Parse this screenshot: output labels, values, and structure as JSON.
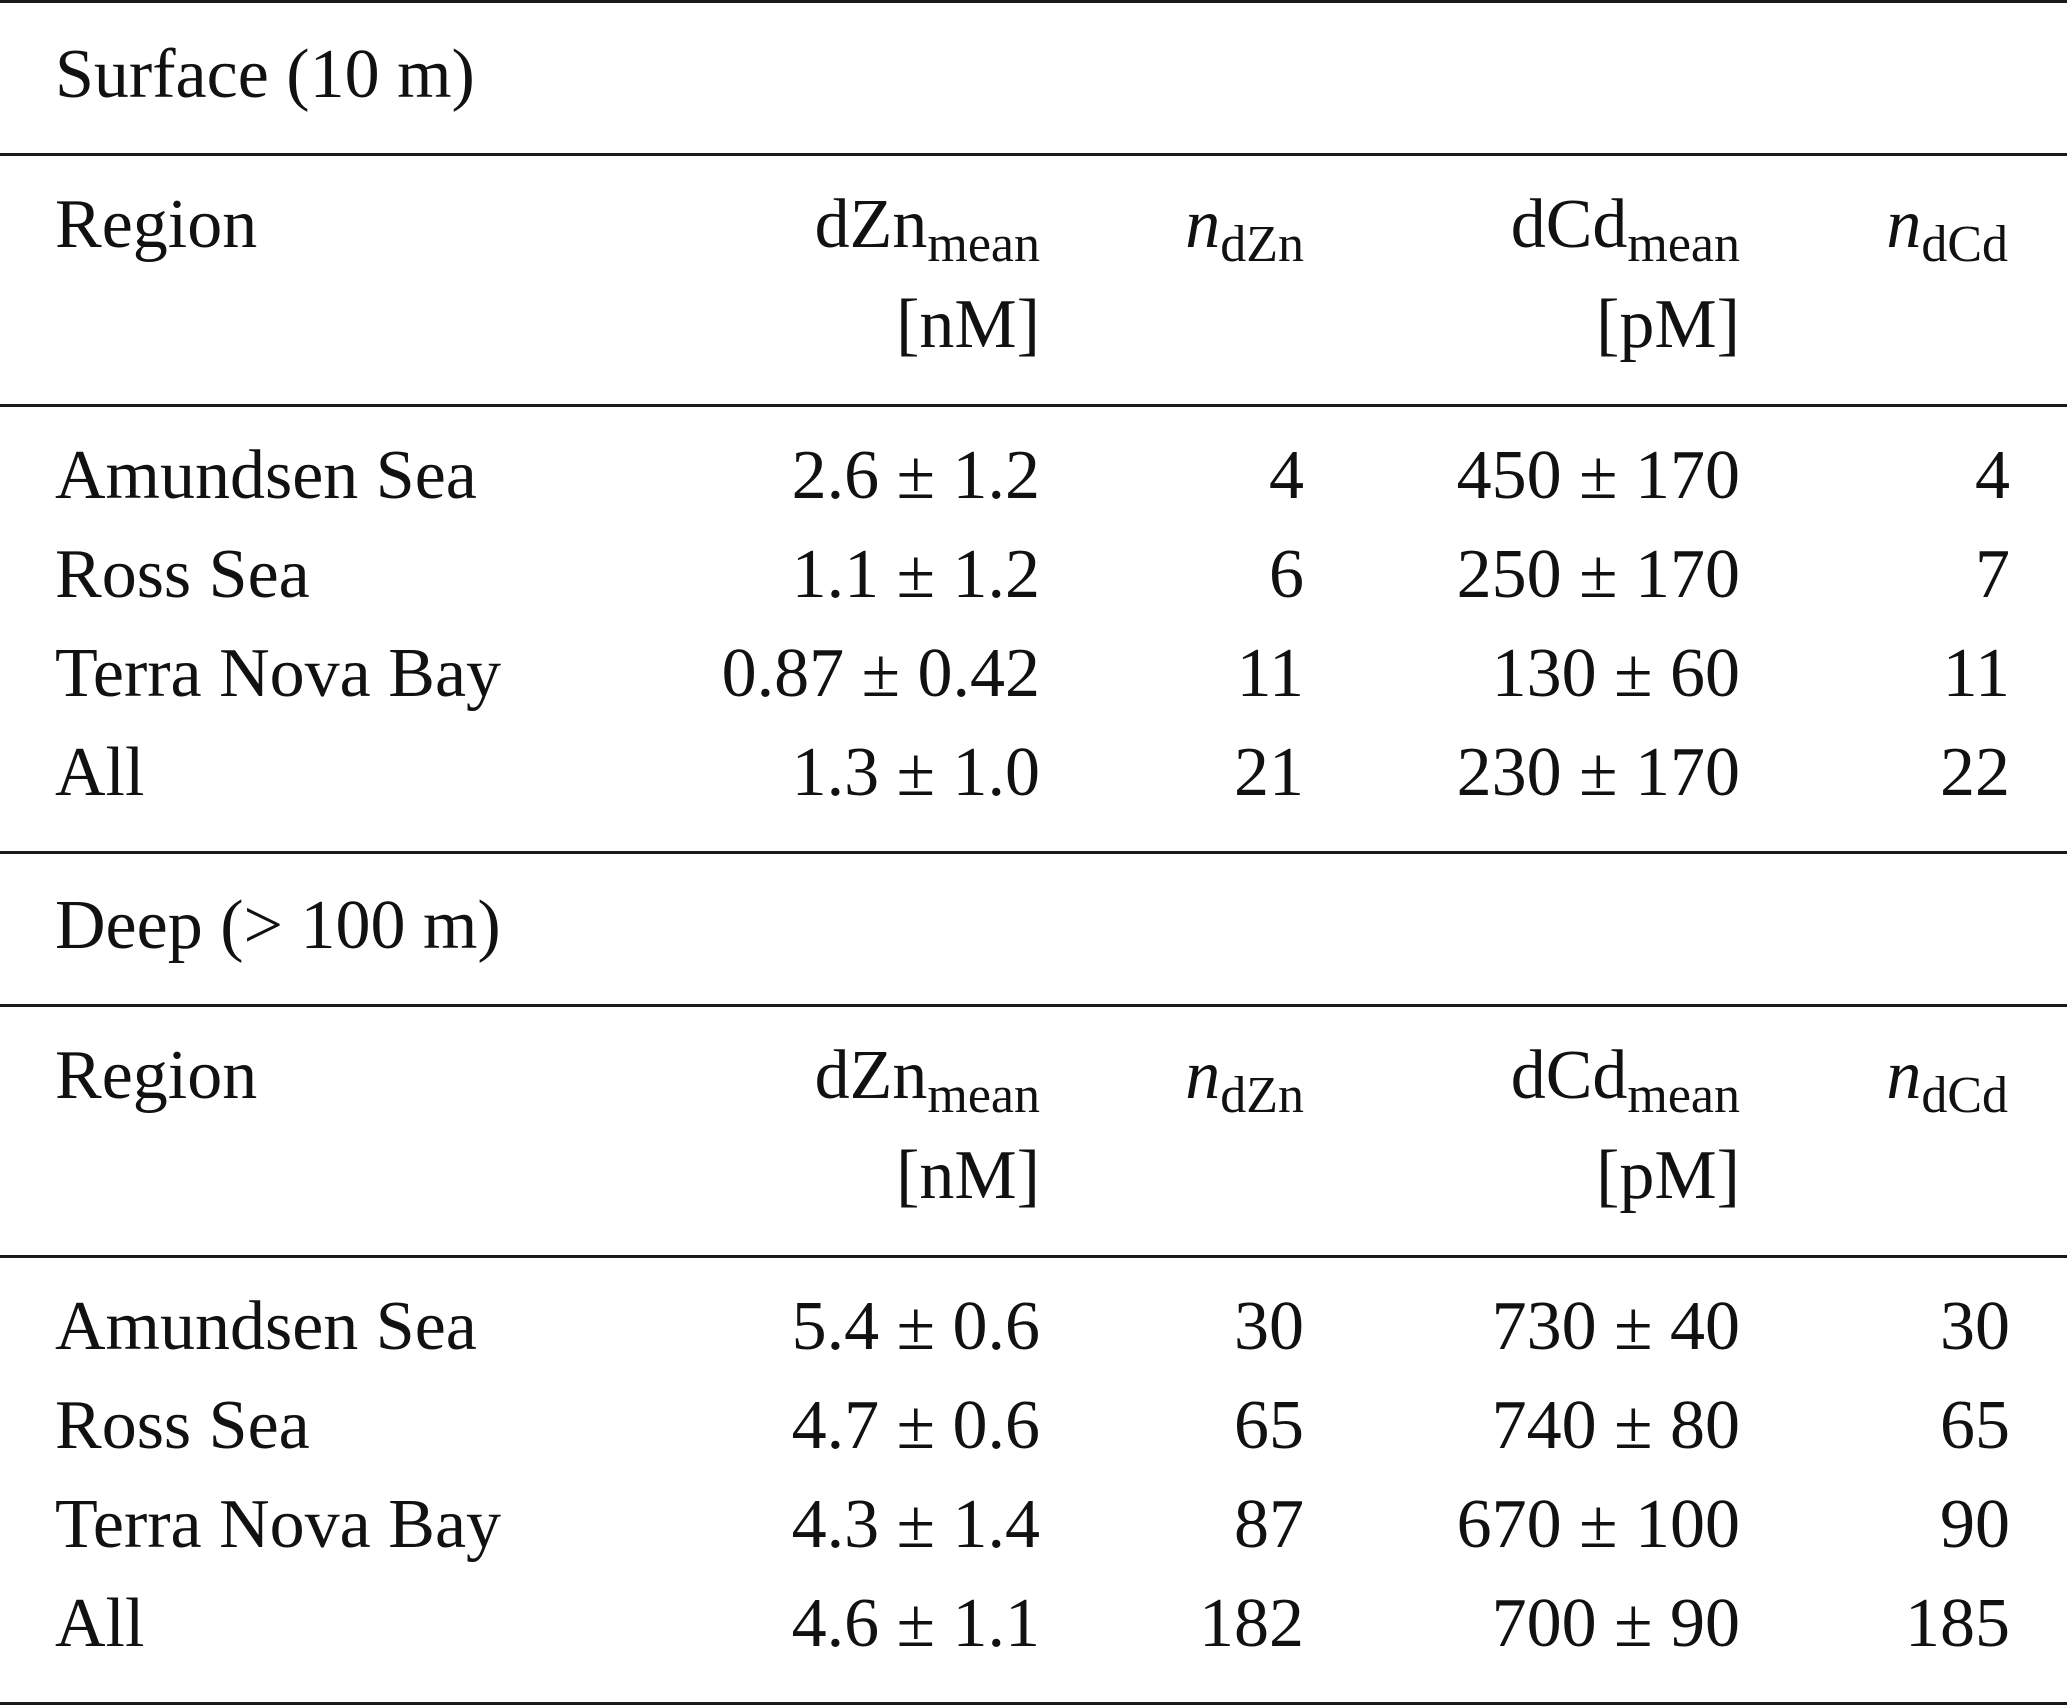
{
  "columns": {
    "region": "Region",
    "dzn_base": "dZn",
    "dzn_sub": "mean",
    "dzn_unit": "[nM]",
    "n_dzn_base": "n",
    "n_dzn_sub": "dZn",
    "dcd_base": "dCd",
    "dcd_sub": "mean",
    "dcd_unit": "[pM]",
    "n_dcd_base": "n",
    "n_dcd_sub": "dCd"
  },
  "sections": [
    {
      "title": "Surface (10 m)",
      "rows": [
        {
          "region": "Amundsen Sea",
          "dzn": "2.6 ± 1.2",
          "n_dzn": "4",
          "dcd": "450 ± 170",
          "n_dcd": "4"
        },
        {
          "region": "Ross Sea",
          "dzn": "1.1 ± 1.2",
          "n_dzn": "6",
          "dcd": "250 ± 170",
          "n_dcd": "7"
        },
        {
          "region": "Terra Nova Bay",
          "dzn": "0.87 ± 0.42",
          "n_dzn": "11",
          "dcd": "130 ± 60",
          "n_dcd": "11"
        },
        {
          "region": "All",
          "dzn": "1.3 ± 1.0",
          "n_dzn": "21",
          "dcd": "230 ± 170",
          "n_dcd": "22"
        }
      ]
    },
    {
      "title": "Deep (> 100 m)",
      "rows": [
        {
          "region": "Amundsen Sea",
          "dzn": "5.4 ± 0.6",
          "n_dzn": "30",
          "dcd": "730 ± 40",
          "n_dcd": "30"
        },
        {
          "region": "Ross Sea",
          "dzn": "4.7 ± 0.6",
          "n_dzn": "65",
          "dcd": "740 ± 80",
          "n_dcd": "65"
        },
        {
          "region": "Terra Nova Bay",
          "dzn": "4.3 ± 1.4",
          "n_dzn": "87",
          "dcd": "670 ± 100",
          "n_dcd": "90"
        },
        {
          "region": "All",
          "dzn": "4.6 ± 1.1",
          "n_dzn": "182",
          "dcd": "700 ± 90",
          "n_dcd": "185"
        }
      ]
    }
  ]
}
